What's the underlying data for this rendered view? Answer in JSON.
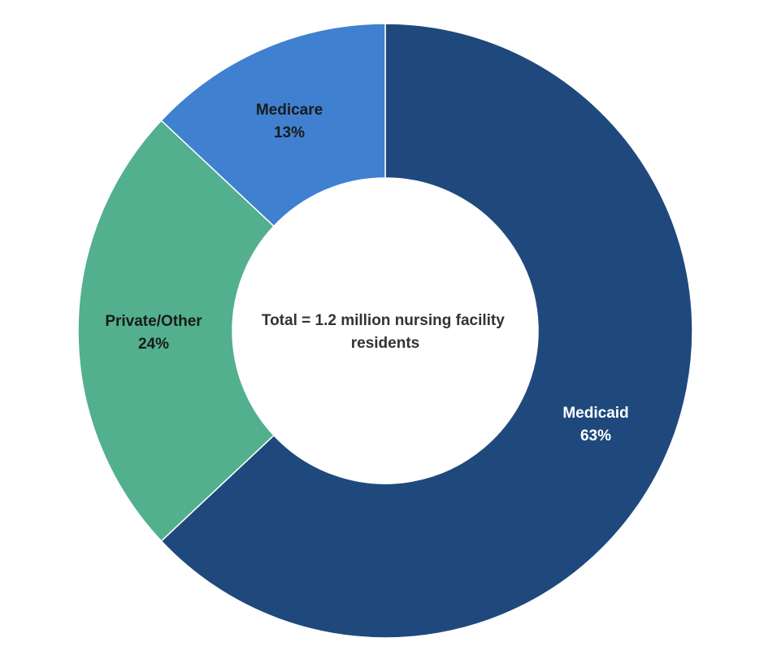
{
  "chart_data": {
    "type": "pie",
    "variant": "donut",
    "center_text": "Total = 1.2 million nursing facility residents",
    "center_lines": [
      "Total = 1.2 million nursing facility",
      "residents"
    ],
    "slices": [
      {
        "label": "Medicaid",
        "value": 63,
        "value_label": "63%",
        "color": "#1f497d",
        "text_color": "#ffffff"
      },
      {
        "label": "Private/Other",
        "value": 24,
        "value_label": "24%",
        "color": "#52b08e",
        "text_color": "#1a1a1a"
      },
      {
        "label": "Medicare",
        "value": 13,
        "value_label": "13%",
        "color": "#3f80d0",
        "text_color": "#1a1a1a"
      }
    ],
    "start": "12 o'clock",
    "direction": "clockwise",
    "legend": "none"
  }
}
